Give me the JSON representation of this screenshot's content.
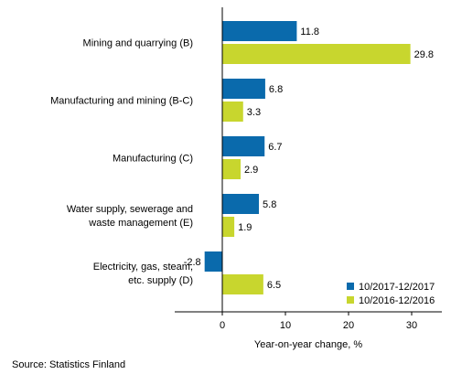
{
  "chart_data": {
    "type": "bar",
    "orientation": "horizontal",
    "categories": [
      [
        "Mining and quarrying (B)"
      ],
      [
        "Manufacturing and mining (B-C)"
      ],
      [
        "Manufacturing (C)"
      ],
      [
        "Water supply, sewerage and",
        "waste management (E)"
      ],
      [
        "Electricity, gas, steam,",
        "etc. supply (D)"
      ]
    ],
    "series": [
      {
        "name": "10/2017-12/2017",
        "color": "#0a6aac",
        "values": [
          11.8,
          6.8,
          6.7,
          5.8,
          -2.8
        ],
        "labels": [
          "11.8",
          "6.8",
          "6.7",
          "5.8",
          "-2.8"
        ]
      },
      {
        "name": "10/2016-12/2016",
        "color": "#c8d62e",
        "values": [
          29.8,
          3.3,
          2.9,
          1.9,
          6.5
        ],
        "labels": [
          "29.8",
          "3.3",
          "2.9",
          "1.9",
          "6.5"
        ]
      }
    ],
    "xlabel": "Year-on-year change, %",
    "xlim": [
      -5,
      33
    ],
    "xticks": [
      0,
      10,
      20,
      30
    ],
    "xtick_labels": [
      "0",
      "10",
      "20",
      "30"
    ],
    "grid": false,
    "legend": "bottom-right"
  },
  "source": "Source: Statistics Finland"
}
